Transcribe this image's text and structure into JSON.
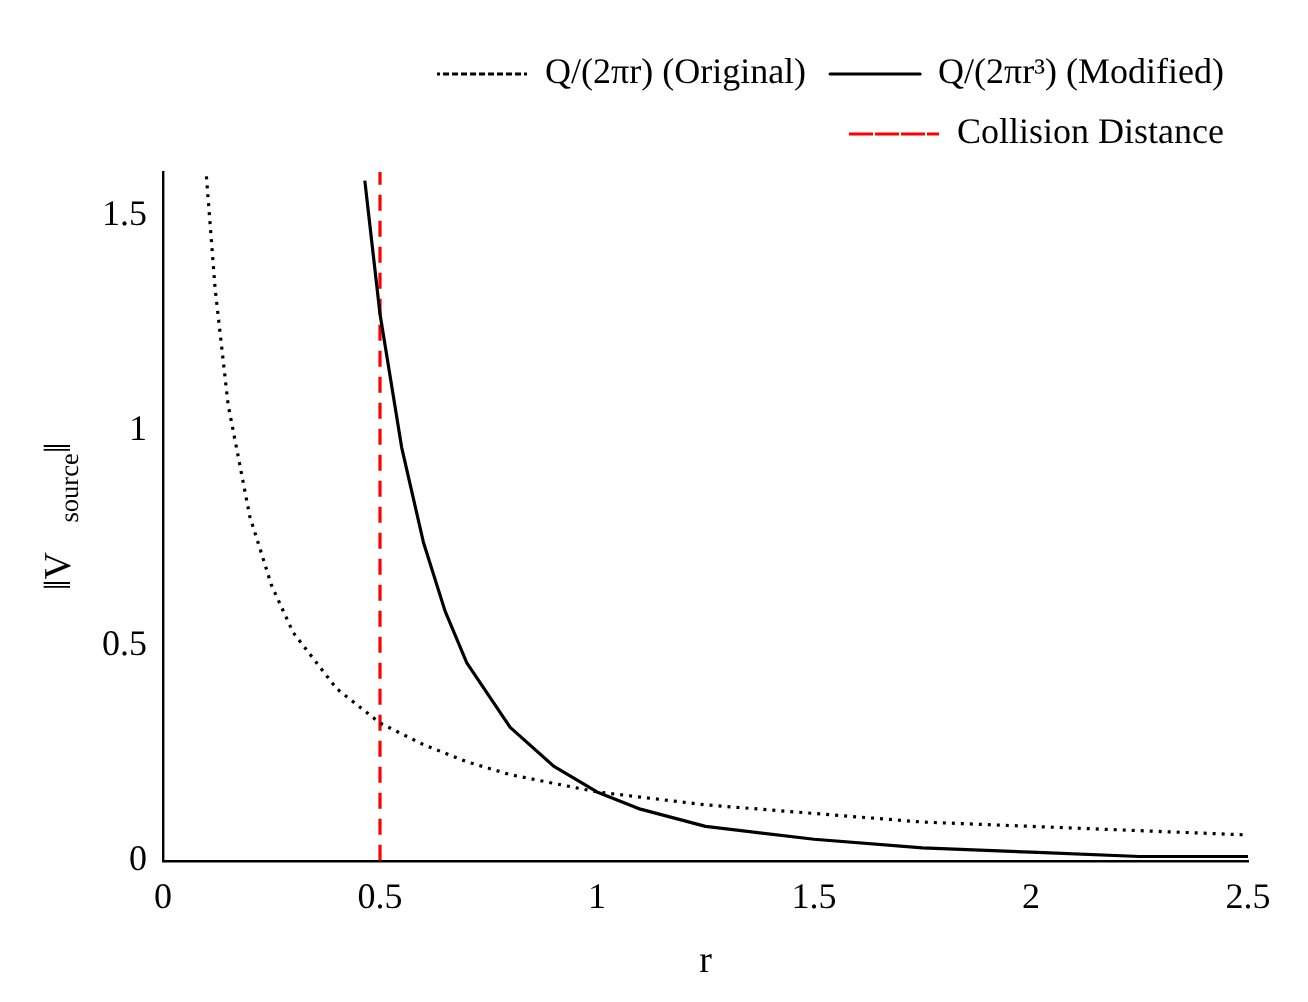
{
  "chart_data": {
    "type": "line",
    "xlabel": "r",
    "ylabel": "‖V⃗$_{source}$‖",
    "xlim": [
      0,
      2.5
    ],
    "xticks": [
      0,
      0.5,
      1,
      1.5,
      2,
      2.5
    ],
    "ylim": [
      0,
      1.6
    ],
    "yticks": [
      0,
      0.5,
      1,
      1.5
    ],
    "grid": false,
    "legend": "top right",
    "marker": "none",
    "series": [
      {
        "name": "Q/(2πr) (Original)",
        "color": "#000000",
        "line_style": "dotted",
        "x": [
          0.1,
          0.12,
          0.15,
          0.2,
          0.25,
          0.3,
          0.4,
          0.5,
          0.6,
          0.7,
          0.8,
          1,
          1.25,
          1.5,
          1.75,
          2,
          2.25,
          2.5
        ],
        "values": [
          1.59,
          1.33,
          1.06,
          0.8,
          0.64,
          0.53,
          0.4,
          0.32,
          0.27,
          0.23,
          0.2,
          0.16,
          0.13,
          0.11,
          0.09,
          0.08,
          0.07,
          0.06
        ]
      },
      {
        "name": "Q/(2πr³) (Modified)",
        "color": "#000000",
        "line_style": "solid",
        "x": [
          0.465,
          0.5,
          0.55,
          0.6,
          0.65,
          0.7,
          0.8,
          0.9,
          1,
          1.1,
          1.25,
          1.5,
          1.75,
          2,
          2.25,
          2.5
        ],
        "values": [
          1.58,
          1.27,
          0.96,
          0.74,
          0.58,
          0.46,
          0.31,
          0.22,
          0.16,
          0.12,
          0.08,
          0.05,
          0.03,
          0.02,
          0.01,
          0.01
        ]
      }
    ],
    "ref_lines": [
      {
        "axis": "x",
        "value": 0.5,
        "label": "Collision Distance",
        "color": "#ff0000",
        "line_style": "dashed"
      }
    ]
  }
}
